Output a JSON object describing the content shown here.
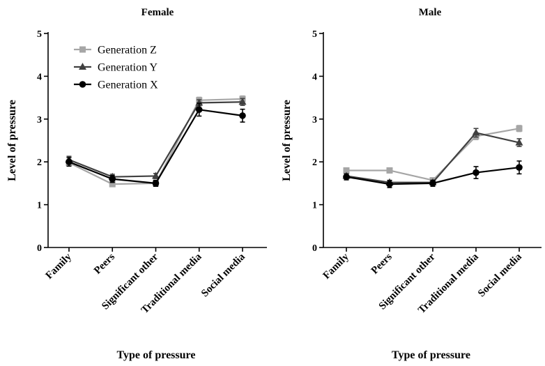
{
  "chart_data": [
    {
      "type": "line",
      "title": "Female",
      "xlabel": "Type of pressure",
      "ylabel": "Level of pressure",
      "ylim": [
        0,
        5
      ],
      "yticks": [
        "0",
        "1",
        "2",
        "3",
        "4",
        "5"
      ],
      "categories": [
        "Family",
        "Peers",
        "Significant other",
        "Traditional media",
        "Social media"
      ],
      "legend": "top-left",
      "series": [
        {
          "name": "Generation Z",
          "color": "#a6a6a6",
          "marker": "square",
          "values": [
            1.98,
            1.48,
            1.5,
            3.44,
            3.47
          ],
          "err": [
            0.07,
            0.05,
            0.05,
            0.07,
            0.07
          ]
        },
        {
          "name": "Generation Y",
          "color": "#404040",
          "marker": "triangle",
          "values": [
            2.05,
            1.65,
            1.67,
            3.38,
            3.4
          ],
          "err": [
            0.08,
            0.06,
            0.06,
            0.07,
            0.08
          ]
        },
        {
          "name": "Generation X",
          "color": "#000000",
          "marker": "circle",
          "values": [
            2.0,
            1.6,
            1.5,
            3.22,
            3.08
          ],
          "err": [
            0.1,
            0.08,
            0.07,
            0.15,
            0.15
          ]
        }
      ]
    },
    {
      "type": "line",
      "title": "Male",
      "xlabel": "Type of pressure",
      "ylabel": "Level of pressure",
      "ylim": [
        0,
        5
      ],
      "yticks": [
        "0",
        "1",
        "2",
        "3",
        "4",
        "5"
      ],
      "categories": [
        "Family",
        "Peers",
        "Significant other",
        "Traditional media",
        "Social media"
      ],
      "series": [
        {
          "name": "Generation Z",
          "color": "#a6a6a6",
          "marker": "square",
          "values": [
            1.8,
            1.8,
            1.57,
            2.6,
            2.78
          ],
          "err": [
            0.04,
            0.04,
            0.04,
            0.08,
            0.07
          ]
        },
        {
          "name": "Generation Y",
          "color": "#404040",
          "marker": "triangle",
          "values": [
            1.67,
            1.52,
            1.52,
            2.68,
            2.45
          ],
          "err": [
            0.05,
            0.05,
            0.05,
            0.1,
            0.09
          ]
        },
        {
          "name": "Generation X",
          "color": "#000000",
          "marker": "circle",
          "values": [
            1.65,
            1.48,
            1.5,
            1.75,
            1.87
          ],
          "err": [
            0.07,
            0.08,
            0.07,
            0.14,
            0.15
          ]
        }
      ]
    }
  ]
}
